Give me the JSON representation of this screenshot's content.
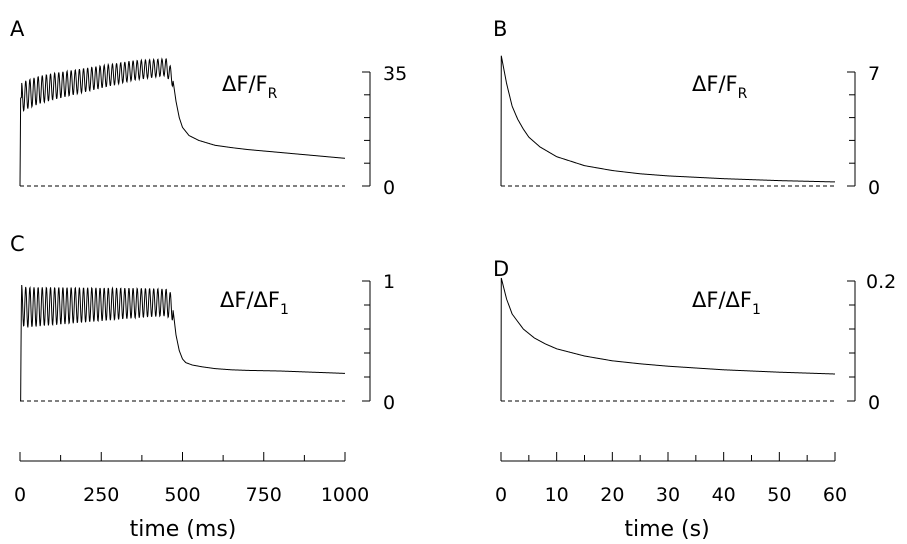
{
  "chart_data": [
    {
      "id": "A",
      "type": "line",
      "panel_label": "A",
      "ylabel": {
        "main": "ΔF/F",
        "sub": "R"
      },
      "ylim": [
        0,
        35
      ],
      "ytick_labels": [
        "35",
        "0"
      ],
      "xlim": [
        0,
        1000
      ],
      "grid": false,
      "baseline_dashed": true,
      "series": [
        {
          "x": [
            0,
            2,
            20,
            60,
            100,
            150,
            200,
            250,
            300,
            350,
            400,
            450,
            470,
            480,
            490,
            500,
            520,
            550,
            600,
            650,
            700,
            800,
            900,
            1000
          ],
          "y": [
            0,
            27,
            28,
            29.5,
            30.5,
            31.5,
            32.5,
            33.5,
            34.5,
            35.5,
            36,
            36.5,
            33,
            26,
            21,
            18,
            15.5,
            14,
            12.5,
            11.8,
            11.2,
            10.3,
            9.4,
            8.5
          ],
          "oscillation": {
            "start": 5,
            "end": 470,
            "period": 12.7,
            "amp_start": 4.5,
            "amp_end": 2.5
          }
        }
      ]
    },
    {
      "id": "B",
      "type": "line",
      "panel_label": "B",
      "ylabel": {
        "main": "ΔF/F",
        "sub": "R"
      },
      "ylim": [
        0,
        7
      ],
      "ytick_labels": [
        "7",
        "0"
      ],
      "xlim": [
        0,
        60
      ],
      "grid": false,
      "baseline_dashed": true,
      "series": [
        {
          "x": [
            0,
            0.05,
            1,
            2,
            3,
            4,
            5,
            7,
            10,
            15,
            20,
            25,
            30,
            40,
            50,
            60
          ],
          "y": [
            0,
            8,
            6.3,
            4.9,
            4.1,
            3.5,
            3.0,
            2.4,
            1.8,
            1.25,
            0.95,
            0.75,
            0.62,
            0.45,
            0.33,
            0.25
          ]
        }
      ]
    },
    {
      "id": "C",
      "type": "line",
      "panel_label": "C",
      "ylabel": {
        "main": "ΔF/ΔF",
        "sub": "1"
      },
      "ylim": [
        0,
        1
      ],
      "ytick_labels": [
        "1",
        "0"
      ],
      "xlim": [
        0,
        1000
      ],
      "grid": false,
      "baseline_dashed": true,
      "series": [
        {
          "x": [
            0,
            2,
            4,
            20,
            100,
            200,
            300,
            400,
            450,
            470,
            480,
            490,
            500,
            510,
            530,
            560,
            600,
            650,
            700,
            800,
            900,
            1000
          ],
          "y": [
            0,
            0,
            0.8,
            0.78,
            0.79,
            0.8,
            0.81,
            0.82,
            0.82,
            0.78,
            0.55,
            0.42,
            0.35,
            0.32,
            0.3,
            0.285,
            0.27,
            0.26,
            0.255,
            0.25,
            0.24,
            0.23
          ],
          "oscillation": {
            "start": 5,
            "end": 470,
            "period": 12.7,
            "amp_start": 0.17,
            "amp_end": 0.11
          }
        }
      ]
    },
    {
      "id": "D",
      "type": "line",
      "panel_label": "D",
      "ylabel": {
        "main": "ΔF/ΔF",
        "sub": "1"
      },
      "ylim": [
        0,
        0.2
      ],
      "ytick_labels": [
        "0.2",
        "0"
      ],
      "xlim": [
        0,
        60
      ],
      "grid": false,
      "baseline_dashed": true,
      "series": [
        {
          "x": [
            0,
            0.05,
            1,
            2,
            4,
            6,
            8,
            10,
            15,
            20,
            25,
            30,
            40,
            50,
            60
          ],
          "y": [
            0,
            0.205,
            0.17,
            0.145,
            0.12,
            0.105,
            0.095,
            0.087,
            0.075,
            0.067,
            0.062,
            0.058,
            0.052,
            0.048,
            0.045
          ]
        }
      ]
    }
  ],
  "x_axes": [
    {
      "id": "left",
      "min": 0,
      "max": 1000,
      "minor_step": 125,
      "tick_labels": [
        "0",
        "250",
        "500",
        "750",
        "1000"
      ],
      "tick_values": [
        0,
        250,
        500,
        750,
        1000
      ],
      "title": "time (ms)"
    },
    {
      "id": "right",
      "min": 0,
      "max": 60,
      "minor_step": 5,
      "tick_labels": [
        "0",
        "10",
        "20",
        "30",
        "40",
        "50",
        "60"
      ],
      "tick_values": [
        0,
        10,
        20,
        30,
        40,
        50,
        60
      ],
      "title": "time (s)"
    }
  ]
}
